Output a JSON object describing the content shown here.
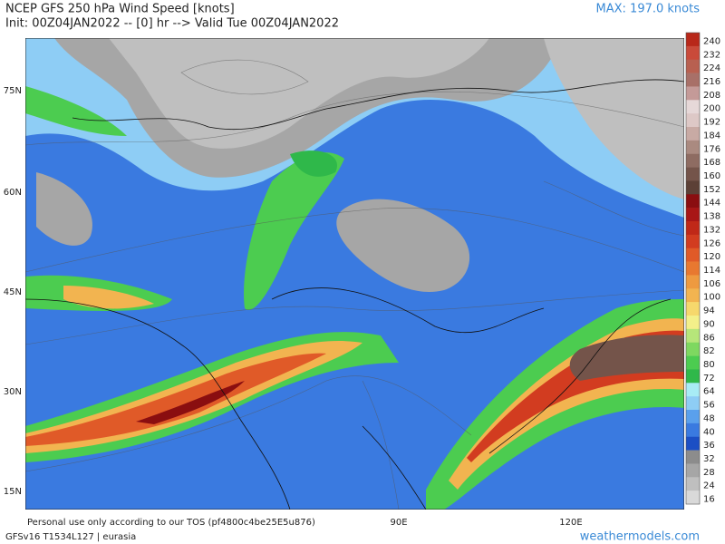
{
  "header": {
    "title": "NCEP GFS 250 hPa Wind Speed [knots]",
    "subtitle": "Init: 00Z04JAN2022 -- [0] hr --> Valid Tue 00Z04JAN2022",
    "max_label": "MAX: 197.0 knots"
  },
  "colorbar": {
    "levels": [
      240,
      232,
      224,
      216,
      208,
      200,
      192,
      184,
      176,
      168,
      160,
      152,
      144,
      138,
      132,
      126,
      120,
      114,
      106,
      100,
      94,
      90,
      86,
      82,
      80,
      72,
      64,
      56,
      48,
      40,
      36,
      32,
      28,
      24,
      16
    ],
    "colors": [
      "#b8281a",
      "#c94a3a",
      "#b86050",
      "#a87068",
      "#c49a98",
      "#e6d8d8",
      "#ddc8c6",
      "#c8aaa4",
      "#aa8a80",
      "#8e6c62",
      "#74544a",
      "#5c4036",
      "#8a0e10",
      "#a81616",
      "#c02818",
      "#d23c20",
      "#e05a28",
      "#e87830",
      "#ee9a40",
      "#f2b450",
      "#f6d86c",
      "#f3f08a",
      "#b6e67a",
      "#7ed860",
      "#4ccc50",
      "#2fb84a",
      "#a8ecf5",
      "#8ecdf5",
      "#5aa0ec",
      "#3a7ae0",
      "#1c4fc4",
      "#8c8c8c",
      "#a6a6a6",
      "#bfbfbf",
      "#d9d9d9"
    ]
  },
  "map": {
    "lat_labels": [
      "75N",
      "60N",
      "45N",
      "30N",
      "15N"
    ],
    "lon_labels": [
      "90E",
      "120E"
    ]
  },
  "footer": {
    "disclaimer": "Personal use only according to our TOS (pf4800c4be25E5u876)",
    "model": "GFSv16 T1534L127 | eurasia",
    "site": "weathermodels.com"
  }
}
